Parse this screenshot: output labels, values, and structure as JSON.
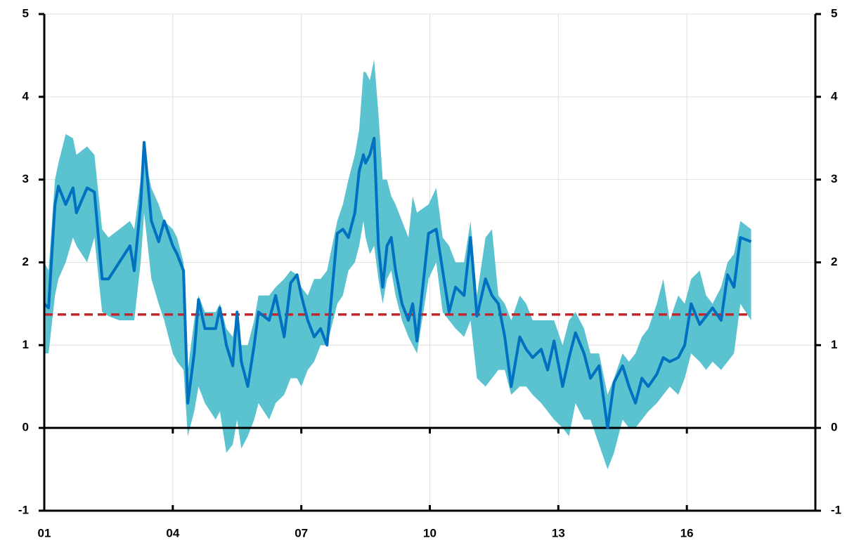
{
  "chart_data": {
    "type": "line",
    "x": [
      1.0,
      1.1,
      1.25,
      1.33,
      1.5,
      1.67,
      1.75,
      2.0,
      2.17,
      2.35,
      2.5,
      2.75,
      3.0,
      3.1,
      3.25,
      3.33,
      3.5,
      3.67,
      3.8,
      4.0,
      4.1,
      4.25,
      4.35,
      4.5,
      4.6,
      4.75,
      5.0,
      5.1,
      5.25,
      5.4,
      5.5,
      5.6,
      5.75,
      5.9,
      6.0,
      6.25,
      6.4,
      6.6,
      6.75,
      6.9,
      7.0,
      7.15,
      7.3,
      7.45,
      7.6,
      7.84,
      7.97,
      8.1,
      8.25,
      8.35,
      8.45,
      8.5,
      8.6,
      8.7,
      8.8,
      8.9,
      9.0,
      9.1,
      9.2,
      9.35,
      9.5,
      9.6,
      9.7,
      9.97,
      10.15,
      10.3,
      10.45,
      10.6,
      10.8,
      10.95,
      11.1,
      11.3,
      11.45,
      11.6,
      11.75,
      11.9,
      12.1,
      12.25,
      12.4,
      12.6,
      12.75,
      12.9,
      13.1,
      13.25,
      13.4,
      13.6,
      13.75,
      13.95,
      14.15,
      14.3,
      14.5,
      14.65,
      14.8,
      14.95,
      15.1,
      15.3,
      15.45,
      15.6,
      15.8,
      15.95,
      16.1,
      16.3,
      16.45,
      16.6,
      16.8,
      16.95,
      17.1,
      17.25,
      17.5
    ],
    "series": [
      {
        "color": "#0070c0",
        "values": [
          1.5,
          1.45,
          2.7,
          2.92,
          2.7,
          2.9,
          2.6,
          2.9,
          2.85,
          1.8,
          1.8,
          2.0,
          2.2,
          1.9,
          2.7,
          3.45,
          2.5,
          2.25,
          2.5,
          2.2,
          2.1,
          1.9,
          0.3,
          0.9,
          1.55,
          1.2,
          1.2,
          1.45,
          1.0,
          0.75,
          1.4,
          0.8,
          0.5,
          1.0,
          1.4,
          1.3,
          1.6,
          1.1,
          1.75,
          1.85,
          1.6,
          1.3,
          1.1,
          1.2,
          1.0,
          2.35,
          2.4,
          2.3,
          2.6,
          3.1,
          3.3,
          3.2,
          3.3,
          3.5,
          2.2,
          1.7,
          2.2,
          2.3,
          1.9,
          1.5,
          1.3,
          1.5,
          1.05,
          2.35,
          2.4,
          1.9,
          1.4,
          1.7,
          1.6,
          2.3,
          1.35,
          1.8,
          1.6,
          1.5,
          1.1,
          0.5,
          1.1,
          0.95,
          0.85,
          0.95,
          0.7,
          1.05,
          0.5,
          0.85,
          1.15,
          0.9,
          0.6,
          0.75,
          0.0,
          0.55,
          0.75,
          0.5,
          0.3,
          0.6,
          0.5,
          0.65,
          0.85,
          0.8,
          0.85,
          1.0,
          1.5,
          1.25,
          1.35,
          1.45,
          1.3,
          1.85,
          1.7,
          2.3,
          2.25
        ]
      }
    ],
    "band": {
      "color": "#5bc2cf",
      "lower": [
        0.9,
        0.9,
        1.6,
        1.8,
        2.0,
        2.3,
        2.2,
        2.0,
        2.3,
        1.4,
        1.35,
        1.3,
        1.3,
        1.3,
        2.0,
        2.6,
        1.8,
        1.5,
        1.3,
        0.9,
        0.8,
        0.7,
        -0.1,
        0.2,
        0.5,
        0.3,
        0.1,
        0.2,
        -0.3,
        -0.2,
        0.1,
        -0.25,
        -0.1,
        0.1,
        0.3,
        0.1,
        0.3,
        0.4,
        0.6,
        0.6,
        0.5,
        0.7,
        0.8,
        1.0,
        1.0,
        1.5,
        1.6,
        1.9,
        2.0,
        2.2,
        2.5,
        2.3,
        2.1,
        2.2,
        1.8,
        1.5,
        1.8,
        1.9,
        1.6,
        1.3,
        1.1,
        1.0,
        0.9,
        1.8,
        2.0,
        1.4,
        1.3,
        1.2,
        1.1,
        1.3,
        0.6,
        0.5,
        0.6,
        0.7,
        0.7,
        0.4,
        0.5,
        0.5,
        0.4,
        0.3,
        0.2,
        0.1,
        0.0,
        -0.1,
        0.3,
        0.1,
        0.1,
        -0.2,
        -0.5,
        -0.3,
        0.1,
        0.0,
        0.0,
        0.1,
        0.2,
        0.3,
        0.4,
        0.5,
        0.4,
        0.6,
        0.9,
        0.8,
        0.7,
        0.8,
        0.7,
        0.8,
        0.9,
        1.5,
        1.3
      ],
      "upper": [
        2.0,
        1.9,
        3.0,
        3.2,
        3.55,
        3.5,
        3.3,
        3.4,
        3.3,
        2.4,
        2.3,
        2.4,
        2.5,
        2.4,
        3.0,
        3.3,
        2.9,
        2.7,
        2.5,
        2.4,
        2.3,
        2.0,
        0.7,
        1.3,
        1.6,
        1.4,
        1.4,
        1.5,
        1.2,
        1.1,
        1.4,
        1.0,
        1.0,
        1.3,
        1.6,
        1.6,
        1.7,
        1.8,
        1.9,
        1.85,
        1.7,
        1.6,
        1.8,
        1.8,
        1.9,
        2.5,
        2.7,
        3.0,
        3.3,
        3.6,
        4.3,
        4.3,
        4.2,
        4.45,
        3.8,
        3.0,
        3.0,
        2.8,
        2.7,
        2.5,
        2.3,
        2.8,
        2.6,
        2.7,
        2.9,
        2.3,
        2.2,
        2.0,
        2.0,
        2.5,
        1.6,
        2.3,
        2.4,
        1.6,
        1.5,
        1.3,
        1.6,
        1.5,
        1.3,
        1.3,
        1.3,
        1.3,
        1.0,
        1.3,
        1.4,
        1.2,
        0.9,
        0.9,
        0.4,
        0.6,
        0.9,
        0.8,
        0.9,
        1.1,
        1.2,
        1.5,
        1.8,
        1.3,
        1.6,
        1.5,
        1.8,
        1.9,
        1.6,
        1.5,
        1.7,
        2.0,
        2.1,
        2.5,
        2.4
      ]
    },
    "reference_line": {
      "value": 1.37,
      "color": "#c0282d"
    },
    "xlim": [
      1,
      19
    ],
    "xticks": [
      {
        "value": 1,
        "label": "01"
      },
      {
        "value": 4,
        "label": "04"
      },
      {
        "value": 7,
        "label": "07"
      },
      {
        "value": 10,
        "label": "10"
      },
      {
        "value": 13,
        "label": "13"
      },
      {
        "value": 16,
        "label": "16"
      }
    ],
    "ylim": [
      -1,
      5
    ],
    "yticks": [
      -1,
      0,
      1,
      2,
      3,
      4,
      5
    ],
    "y2lim": [
      -1,
      5
    ],
    "y2ticks": [
      -1,
      0,
      1,
      2,
      3,
      4,
      5
    ],
    "grid": true
  }
}
